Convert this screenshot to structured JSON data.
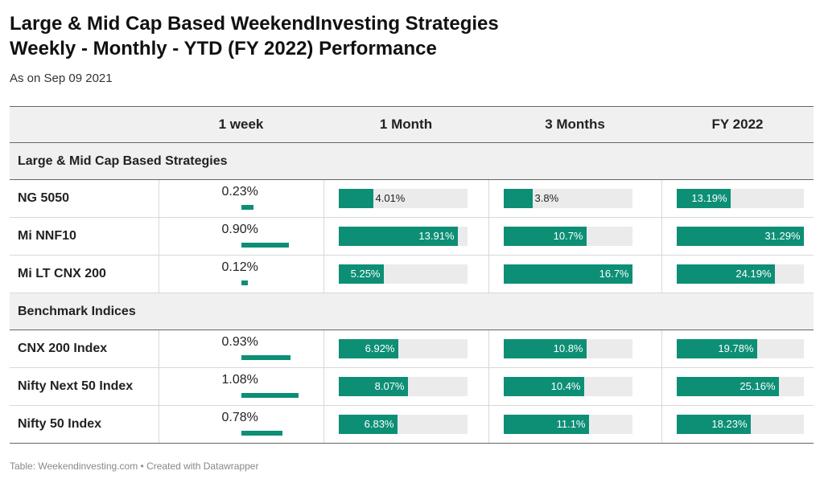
{
  "title_line1": "Large & Mid Cap Based WeekendInvesting Strategies",
  "title_line2": "Weekly - Monthly - YTD (FY 2022) Performance",
  "subtitle": "As on Sep 09 2021",
  "footer": "Table: Weekendinvesting.com • Created with Datawrapper",
  "colors": {
    "bar": "#0d8f76",
    "track": "#ebebeb",
    "header_bg": "#f0f0f0"
  },
  "chart_data": {
    "type": "table",
    "columns": [
      "",
      "1 week",
      "1 Month",
      "3 Months",
      "FY 2022"
    ],
    "bar_scale_max": {
      "1 week": 1.08,
      "1 Month": 15.0,
      "3 Months": 16.7,
      "FY 2022": 31.29
    },
    "groups": [
      {
        "name": "Large & Mid Cap Based Strategies",
        "rows": [
          {
            "name": "NG 5050",
            "values": [
              0.23,
              4.01,
              3.8,
              13.19
            ],
            "labels": [
              "0.23%",
              "4.01%",
              "3.8%",
              "13.19%"
            ]
          },
          {
            "name": "Mi NNF10",
            "values": [
              0.9,
              13.91,
              10.7,
              31.29
            ],
            "labels": [
              "0.90%",
              "13.91%",
              "10.7%",
              "31.29%"
            ]
          },
          {
            "name": "Mi LT CNX 200",
            "values": [
              0.12,
              5.25,
              16.7,
              24.19
            ],
            "labels": [
              "0.12%",
              "5.25%",
              "16.7%",
              "24.19%"
            ]
          }
        ]
      },
      {
        "name": "Benchmark Indices",
        "rows": [
          {
            "name": "CNX 200 Index",
            "values": [
              0.93,
              6.92,
              10.8,
              19.78
            ],
            "labels": [
              "0.93%",
              "6.92%",
              "10.8%",
              "19.78%"
            ]
          },
          {
            "name": "Nifty Next 50 Index",
            "values": [
              1.08,
              8.07,
              10.4,
              25.16
            ],
            "labels": [
              "1.08%",
              "8.07%",
              "10.4%",
              "25.16%"
            ]
          },
          {
            "name": "Nifty 50 Index",
            "values": [
              0.78,
              6.83,
              11.1,
              18.23
            ],
            "labels": [
              "0.78%",
              "6.83%",
              "11.1%",
              "18.23%"
            ]
          }
        ]
      }
    ]
  }
}
